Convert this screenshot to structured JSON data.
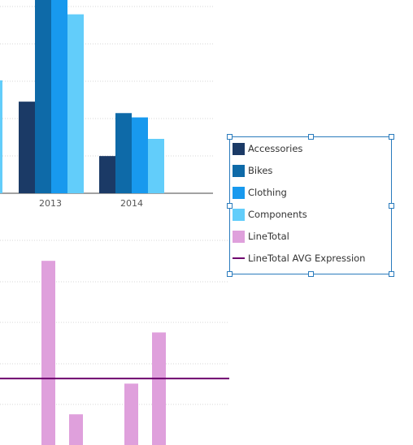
{
  "colors": {
    "accessories": "#1b3a66",
    "bikes": "#0e6aa8",
    "clothing": "#1899ee",
    "components": "#62cdfa",
    "linetotal": "#dfa0dc",
    "avg_line": "#6e006e",
    "legend_border": "#2a7bbd",
    "grid": "#d7d7d7",
    "axis": "#444444"
  },
  "chart_data": [
    {
      "type": "bar",
      "categories": [
        "2013",
        "2014"
      ],
      "series": [
        {
          "name": "Accessories",
          "values": [
            6.4,
            2.6
          ]
        },
        {
          "name": "Bikes",
          "values": [
            13.5,
            5.6
          ]
        },
        {
          "name": "Clothing",
          "values": [
            13.5,
            5.3
          ]
        },
        {
          "name": "Components",
          "values": [
            12.5,
            3.8
          ]
        }
      ],
      "ylim": [
        0,
        13.5
      ],
      "grid": true
    },
    {
      "type": "bar",
      "values": [
        3.6,
        0.6,
        1.2,
        2.2
      ],
      "series": [
        {
          "name": "LineTotal",
          "values": [
            3.6,
            0.6,
            1.2,
            2.2
          ]
        }
      ],
      "reference_line": {
        "name": "LineTotal AVG Expression",
        "value": 1.3
      },
      "ylim": [
        0,
        4
      ],
      "grid": true
    }
  ],
  "legend": {
    "items": [
      {
        "label": "Accessories",
        "color": "#1b3a66",
        "kind": "box"
      },
      {
        "label": "Bikes",
        "color": "#0e6aa8",
        "kind": "box"
      },
      {
        "label": "Clothing",
        "color": "#1899ee",
        "kind": "box"
      },
      {
        "label": "Components",
        "color": "#62cdfa",
        "kind": "box"
      },
      {
        "label": "LineTotal",
        "color": "#dfa0dc",
        "kind": "box"
      },
      {
        "label": "LineTotal AVG Expression",
        "color": "#6e006e",
        "kind": "line"
      }
    ]
  }
}
